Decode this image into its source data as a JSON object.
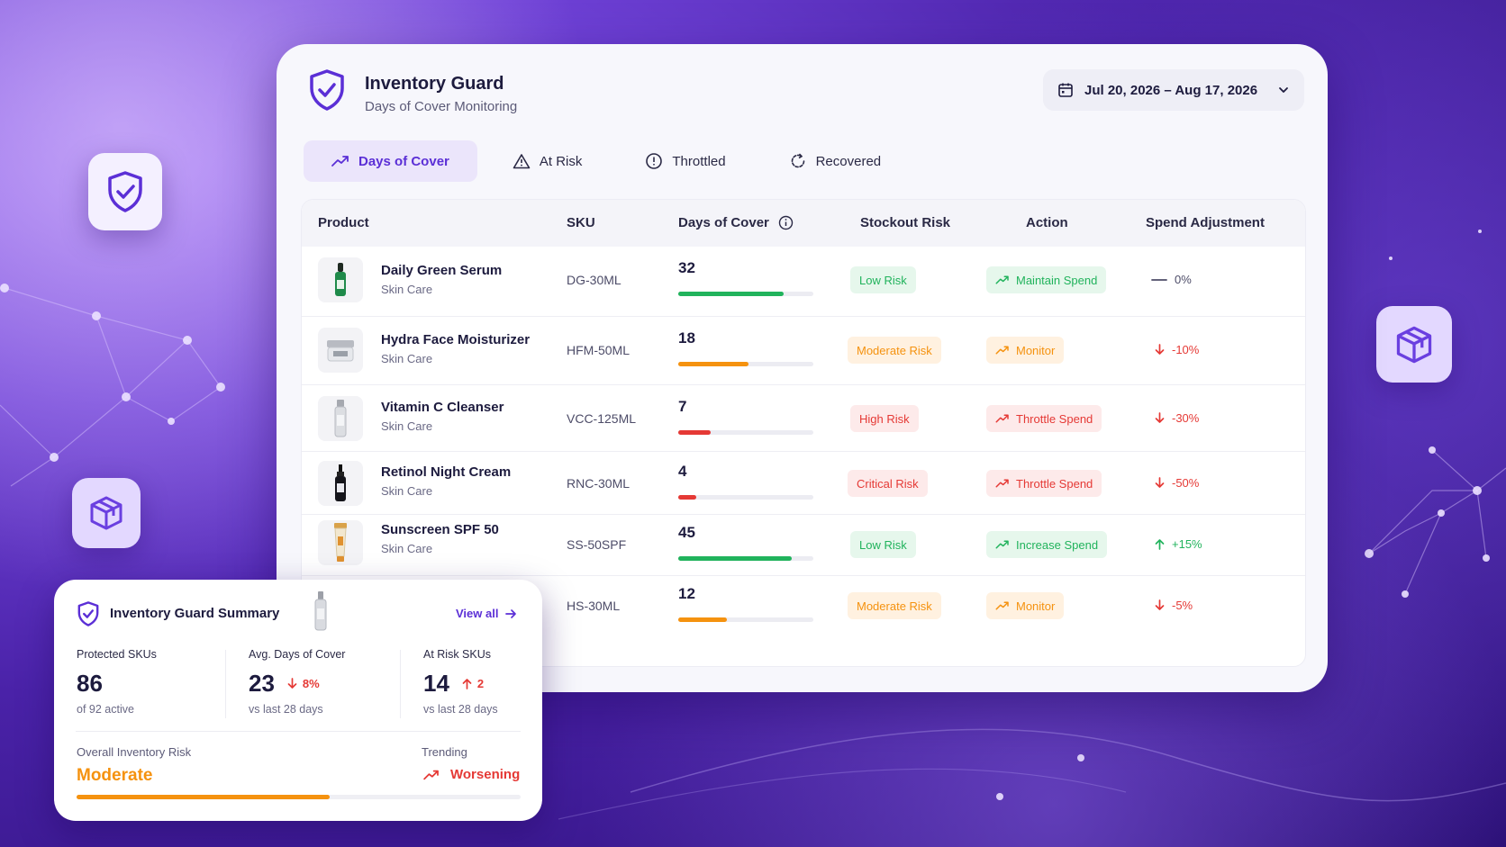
{
  "app": {
    "title": "Inventory Guard",
    "subtitle": "Days of Cover Monitoring"
  },
  "date_range": {
    "label": "Jul 20, 2026 – Aug 17, 2026"
  },
  "tabs": [
    {
      "label": "Days of Cover",
      "icon": "trend-up-icon",
      "active": true
    },
    {
      "label": "At Risk",
      "icon": "warning-icon",
      "active": false
    },
    {
      "label": "Throttled",
      "icon": "alert-circle-icon",
      "active": false
    },
    {
      "label": "Recovered",
      "icon": "refresh-icon",
      "active": false
    }
  ],
  "table": {
    "columns": [
      "Product",
      "SKU",
      "Days of Cover",
      "Stockout Risk",
      "Action",
      "Spend Adjustment"
    ],
    "rows": [
      {
        "name": "Daily Green Serum",
        "category": "Skin Care",
        "sku": "DG-30ML",
        "days": "32",
        "cover_fraction": 0.78,
        "risk": "Low Risk",
        "action": "Maintain Spend",
        "spend": "0%",
        "spend_dir": "flat"
      },
      {
        "name": "Hydra Face Moisturizer",
        "category": "Skin Care",
        "sku": "HFM-50ML",
        "days": "18",
        "cover_fraction": 0.52,
        "risk": "Moderate Risk",
        "action": "Monitor",
        "spend": "-10%",
        "spend_dir": "down"
      },
      {
        "name": "Vitamin C Cleanser",
        "category": "Skin Care",
        "sku": "VCC-125ML",
        "days": "7",
        "cover_fraction": 0.24,
        "risk": "High Risk",
        "action": "Throttle Spend",
        "spend": "-30%",
        "spend_dir": "down"
      },
      {
        "name": "Retinol Night Cream",
        "category": "Skin Care",
        "sku": "RNC-30ML",
        "days": "4",
        "cover_fraction": 0.13,
        "risk": "Critical Risk",
        "action": "Throttle Spend",
        "spend": "-50%",
        "spend_dir": "down"
      },
      {
        "name": "Sunscreen SPF 50",
        "category": "Skin Care",
        "sku": "SS-50SPF",
        "days": "45",
        "cover_fraction": 0.84,
        "risk": "Low Risk",
        "action": "Increase Spend",
        "spend": "+15%",
        "spend_dir": "up"
      },
      {
        "name": "",
        "category": "",
        "sku": "HS-30ML",
        "days": "12",
        "cover_fraction": 0.36,
        "risk": "Moderate Risk",
        "action": "Monitor",
        "spend": "-5%",
        "spend_dir": "down"
      }
    ]
  },
  "summary": {
    "title": "Inventory Guard Summary",
    "view_all": "View all",
    "protected": {
      "label": "Protected SKUs",
      "value": "86",
      "sub": "of 92 active"
    },
    "avg_days": {
      "label": "Avg. Days of Cover",
      "value": "23",
      "delta": "8%",
      "sub": "vs last 28 days"
    },
    "at_risk": {
      "label": "At Risk SKUs",
      "value": "14",
      "delta": "2",
      "sub": "vs last 28 days"
    },
    "overall_risk_label": "Overall Inventory Risk",
    "overall_risk_value": "Moderate",
    "overall_risk_fraction": 0.57,
    "trending_label": "Trending",
    "trending_value": "Worsening"
  },
  "colors": {
    "accent": "#5b2fd6",
    "low": "#21b35c",
    "moderate": "#f5920f",
    "high": "#e53935",
    "low_bg": "#e6f7ec",
    "moderate_bg": "#fff1e0",
    "high_bg": "#fdeaea"
  }
}
